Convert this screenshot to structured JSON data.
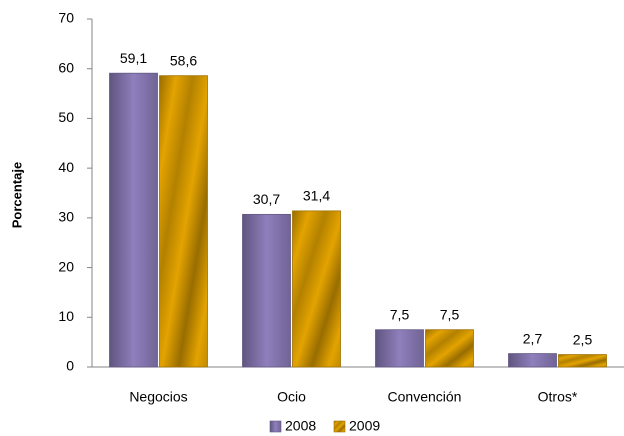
{
  "chart_data": {
    "type": "bar",
    "ylabel": "Porcentaje",
    "categories": [
      "Negocios",
      "Ocio",
      "Convención",
      "Otros*"
    ],
    "series": [
      {
        "name": "2008",
        "color": "#8f7fbd",
        "values": [
          59.1,
          30.7,
          7.5,
          2.7
        ],
        "value_labels": [
          "59,1",
          "30,7",
          "7,5",
          "2,7"
        ]
      },
      {
        "name": "2009",
        "color": "#e3a300",
        "values": [
          58.6,
          31.4,
          7.5,
          2.5
        ],
        "value_labels": [
          "58,6",
          "31,4",
          "7,5",
          "2,5"
        ]
      }
    ],
    "ylim": [
      0,
      70
    ],
    "yticks": [
      0,
      10,
      20,
      30,
      40,
      50,
      60,
      70
    ],
    "grid": false,
    "legend": "bottom"
  }
}
